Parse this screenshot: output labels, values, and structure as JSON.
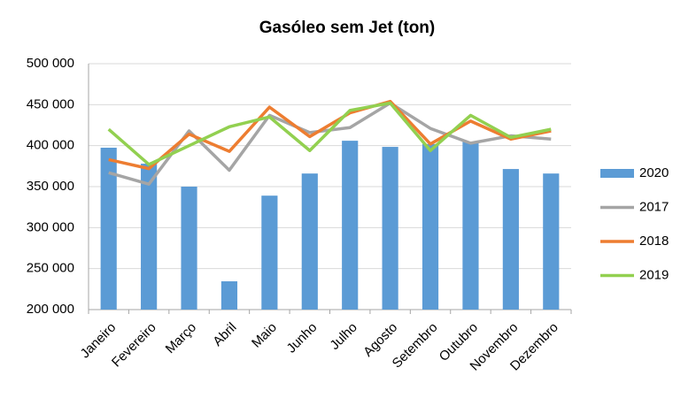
{
  "chart_data": {
    "type": "bar",
    "title": "Gasóleo sem Jet (ton)",
    "categories": [
      "Janeiro",
      "Fevereiro",
      "Março",
      "Abril",
      "Maio",
      "Junho",
      "Julho",
      "Agosto",
      "Setembro",
      "Outubro",
      "Novembro",
      "Dezembro"
    ],
    "series": [
      {
        "name": "2020",
        "type": "bar",
        "color": "#5b9bd5",
        "values": [
          397500,
          378000,
          350000,
          234500,
          339000,
          366000,
          406000,
          398500,
          402000,
          405000,
          371500,
          366000
        ]
      },
      {
        "name": "2017",
        "type": "line",
        "color": "#a5a5a5",
        "values": [
          367000,
          353000,
          418000,
          370000,
          437000,
          416000,
          422000,
          452000,
          421000,
          403000,
          412000,
          408000
        ]
      },
      {
        "name": "2018",
        "type": "line",
        "color": "#ed7d31",
        "values": [
          383000,
          372000,
          414000,
          393000,
          447000,
          411000,
          440000,
          454000,
          402000,
          430000,
          408000,
          418000
        ]
      },
      {
        "name": "2019",
        "type": "line",
        "color": "#92d050",
        "values": [
          420000,
          377000,
          400000,
          423000,
          435000,
          394000,
          443000,
          452000,
          394000,
          437000,
          410000,
          420000
        ]
      }
    ],
    "ylim": [
      200000,
      500000
    ],
    "yticks": [
      {
        "value": 200000,
        "label": "200 000"
      },
      {
        "value": 250000,
        "label": "250 000"
      },
      {
        "value": 300000,
        "label": "300 000"
      },
      {
        "value": 350000,
        "label": "350 000"
      },
      {
        "value": 400000,
        "label": "400 000"
      },
      {
        "value": 450000,
        "label": "450 000"
      },
      {
        "value": 500000,
        "label": "500 000"
      }
    ],
    "grid": true,
    "legend": "right"
  }
}
